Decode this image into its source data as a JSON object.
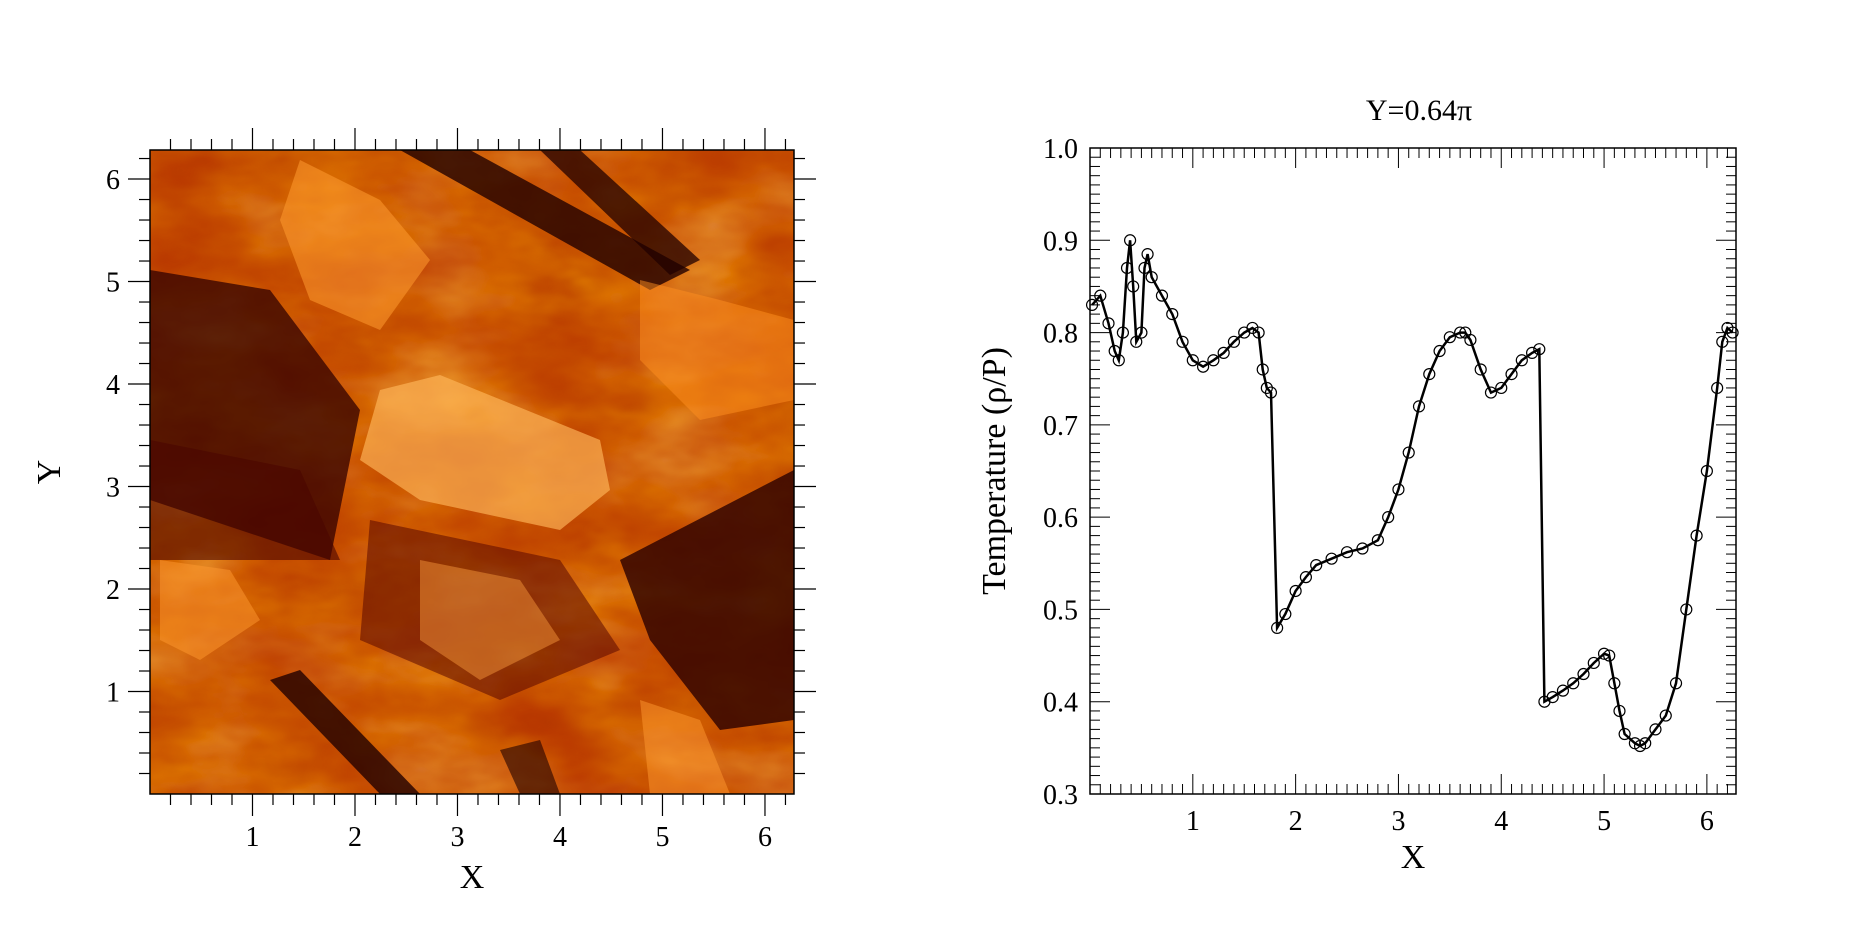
{
  "chart_data": [
    {
      "type": "heatmap",
      "title": "",
      "xlabel": "X",
      "ylabel": "Y",
      "xlim": [
        0,
        6.2832
      ],
      "ylim": [
        0,
        6.2832
      ],
      "xticks": [
        "1",
        "2",
        "3",
        "4",
        "5",
        "6"
      ],
      "yticks": [
        "1",
        "2",
        "3",
        "4",
        "5",
        "6"
      ],
      "colormap": [
        "#3a0000",
        "#8c1800",
        "#c84300",
        "#ee7a12",
        "#ffc270"
      ],
      "description_colors": {
        "dark": "#3a0000",
        "mid": "#c84300",
        "bright": "#ffc270"
      }
    },
    {
      "type": "line",
      "title": "Y=0.64π",
      "xlabel": "X",
      "ylabel": "Temperature (ρ/P)",
      "xlim": [
        0,
        6.2832
      ],
      "ylim": [
        0.3,
        1.0
      ],
      "xticks": [
        "1",
        "2",
        "3",
        "4",
        "5",
        "6"
      ],
      "yticks": [
        "0.3",
        "0.4",
        "0.5",
        "0.6",
        "0.7",
        "0.8",
        "0.9",
        "1.0"
      ],
      "grid": false,
      "markers": "open-circle",
      "line_color": "#000000",
      "series": [
        {
          "x": [
            0.02,
            0.1,
            0.18,
            0.24,
            0.28,
            0.32,
            0.36,
            0.39,
            0.42,
            0.45,
            0.5,
            0.53,
            0.56,
            0.6,
            0.7,
            0.8,
            0.9,
            1.0,
            1.1,
            1.2,
            1.3,
            1.4,
            1.5,
            1.58,
            1.64,
            1.68,
            1.72,
            1.76,
            1.82,
            1.9,
            2.0,
            2.1,
            2.2,
            2.35,
            2.5,
            2.65,
            2.8,
            2.9,
            3.0,
            3.1,
            3.2,
            3.3,
            3.4,
            3.5,
            3.6,
            3.65,
            3.7,
            3.8,
            3.9,
            4.0,
            4.1,
            4.2,
            4.3,
            4.37,
            4.42,
            4.5,
            4.6,
            4.7,
            4.8,
            4.9,
            5.0,
            5.05,
            5.1,
            5.15,
            5.2,
            5.3,
            5.35,
            5.4,
            5.5,
            5.6,
            5.7,
            5.8,
            5.9,
            6.0,
            6.1,
            6.15,
            6.2,
            6.25
          ],
          "y": [
            0.83,
            0.84,
            0.81,
            0.78,
            0.77,
            0.8,
            0.87,
            0.9,
            0.85,
            0.79,
            0.8,
            0.87,
            0.885,
            0.86,
            0.84,
            0.82,
            0.79,
            0.77,
            0.763,
            0.77,
            0.778,
            0.79,
            0.8,
            0.805,
            0.8,
            0.76,
            0.74,
            0.735,
            0.48,
            0.495,
            0.52,
            0.535,
            0.548,
            0.555,
            0.562,
            0.566,
            0.575,
            0.6,
            0.63,
            0.67,
            0.72,
            0.755,
            0.78,
            0.795,
            0.8,
            0.8,
            0.792,
            0.76,
            0.735,
            0.74,
            0.755,
            0.77,
            0.778,
            0.782,
            0.4,
            0.405,
            0.412,
            0.42,
            0.43,
            0.442,
            0.452,
            0.45,
            0.42,
            0.39,
            0.365,
            0.355,
            0.352,
            0.355,
            0.37,
            0.385,
            0.42,
            0.5,
            0.58,
            0.65,
            0.74,
            0.79,
            0.805,
            0.8
          ]
        }
      ]
    }
  ]
}
